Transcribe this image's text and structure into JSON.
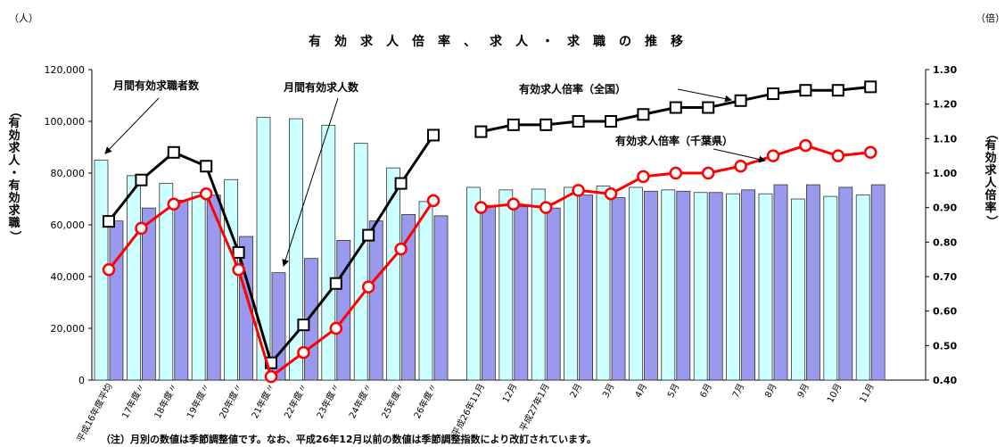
{
  "title": "有効求人倍率、求人・求職の推移",
  "left_unit": "（人）",
  "right_unit": "（倍）",
  "left_axis_label": "（有効求人・有効求職）",
  "right_axis_label": "（有効求人倍率）",
  "note": "（注）月別の数値は季節調整値です。なお、平成26年12月以前の数値は季節調整指数により改訂されています。",
  "colors": {
    "applicants_bar": "#ccffff",
    "openings_bar": "#9999ee",
    "national_line": "#000000",
    "chiba_line": "#ff0000"
  },
  "chart_data": {
    "type": "bar",
    "categories": [
      "平成16年度平均",
      "17年度〃",
      "18年度〃",
      "19年度〃",
      "20年度〃",
      "21年度〃",
      "22年度〃",
      "23年度〃",
      "24年度〃",
      "25年度〃",
      "26年度〃",
      "平成26年11月",
      "12月",
      "平成27年1月",
      "2月",
      "3月",
      "4月",
      "5月",
      "6月",
      "7月",
      "8月",
      "9月",
      "10月",
      "11月"
    ],
    "gap_after_index": 10,
    "series": [
      {
        "name": "月間有効求職者数",
        "axis": "left",
        "kind": "bar",
        "values": [
          85000,
          79000,
          76000,
          72500,
          77500,
          101500,
          101000,
          98500,
          91500,
          82000,
          69000,
          74500,
          73500,
          73800,
          74500,
          75000,
          74500,
          73500,
          72500,
          72000,
          72000,
          70000,
          71000,
          71500
        ]
      },
      {
        "name": "月間有効求人数",
        "axis": "left",
        "kind": "bar",
        "values": [
          61500,
          66500,
          69500,
          71500,
          55500,
          41500,
          47000,
          54000,
          61500,
          64000,
          63500,
          67500,
          67000,
          66500,
          71500,
          70500,
          73000,
          73000,
          72500,
          73500,
          75500,
          75500,
          74500,
          75500
        ]
      },
      {
        "name": "有効求人倍率（全国）",
        "axis": "right",
        "kind": "line",
        "values": [
          0.86,
          0.98,
          1.06,
          1.02,
          0.77,
          0.45,
          0.56,
          0.68,
          0.82,
          0.97,
          1.11,
          1.12,
          1.14,
          1.14,
          1.15,
          1.15,
          1.17,
          1.19,
          1.19,
          1.21,
          1.23,
          1.24,
          1.24,
          1.25
        ]
      },
      {
        "name": "有効求人倍率（千葉県）",
        "axis": "right",
        "kind": "line",
        "values": [
          0.72,
          0.84,
          0.91,
          0.94,
          0.72,
          0.41,
          0.48,
          0.55,
          0.67,
          0.78,
          0.92,
          0.9,
          0.91,
          0.9,
          0.95,
          0.94,
          0.99,
          1.0,
          1.0,
          1.02,
          1.05,
          1.08,
          1.05,
          1.06
        ]
      }
    ],
    "left_axis": {
      "min": 0,
      "max": 120000,
      "ticks": [
        "0",
        "20,000",
        "40,000",
        "60,000",
        "80,000",
        "100,000",
        "120,000"
      ]
    },
    "right_axis": {
      "min": 0.4,
      "max": 1.3,
      "ticks": [
        "0.40",
        "0.50",
        "0.60",
        "0.70",
        "0.80",
        "0.90",
        "1.00",
        "1.10",
        "1.20",
        "1.30"
      ]
    },
    "annotations": [
      "月間有効求職者数",
      "月間有効求人数",
      "有効求人倍率（全国）",
      "有効求人倍率（千葉県）"
    ],
    "grid": false
  }
}
